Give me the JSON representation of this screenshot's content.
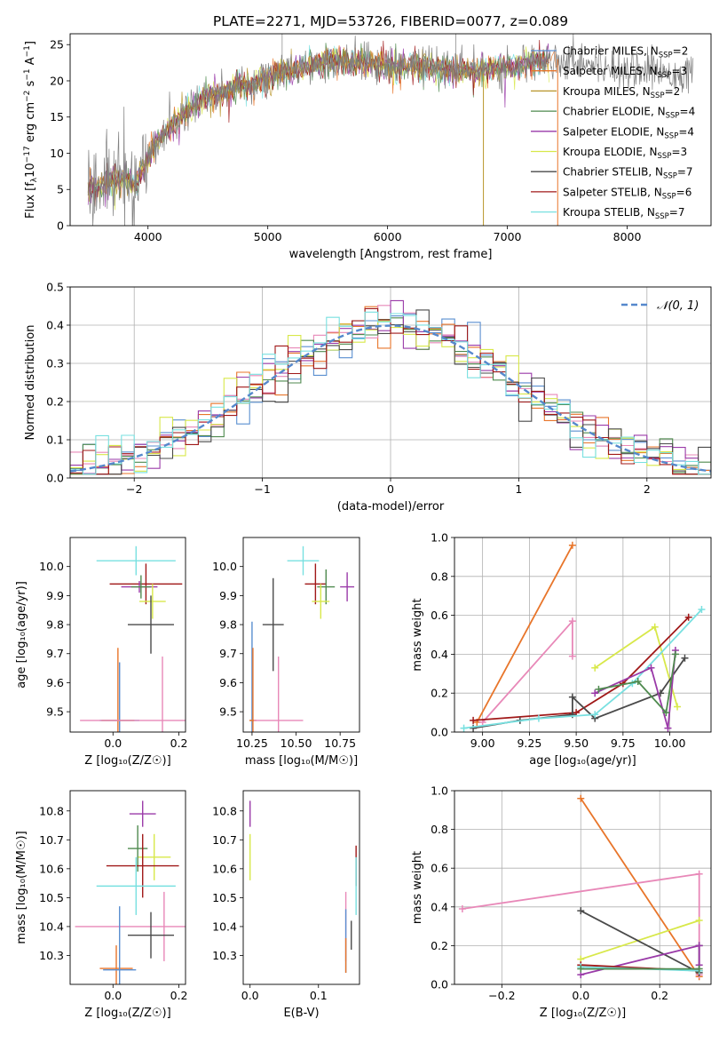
{
  "title": "PLATE=2271, MJD=53726, FIBERID=0077, z=0.089",
  "colors": {
    "Chabrier MILES": "#5a8fd0",
    "Salpeter MILES": "#e8752a",
    "Kroupa MILES": "#b8952a",
    "Chabrier ELODIE": "#4f8a4f",
    "Salpeter ELODIE": "#9a3aa8",
    "Kroupa ELODIE": "#d8e84a",
    "Chabrier STELIB": "#4a4a4a",
    "Salpeter STELIB": "#a01818",
    "Kroupa STELIB": "#78e0e0",
    "pink": "#e888b8",
    "grid": "#b0b0b0"
  },
  "chart_data": [
    {
      "id": "spectrum",
      "type": "line",
      "title": "PLATE=2271, MJD=53726, FIBERID=0077, z=0.089",
      "xlabel": "wavelength [Angstrom, rest frame]",
      "ylabel_parts": [
        "Flux [f",
        "λ",
        "10",
        "−17",
        " erg cm",
        "−2",
        " s",
        "−1",
        " A",
        "−1",
        "]"
      ],
      "xlim": [
        3350,
        8700
      ],
      "ylim": [
        0,
        26.5
      ],
      "xticks": [
        "4000",
        "5000",
        "6000",
        "7000",
        "8000"
      ],
      "xtick_values": [
        4000,
        5000,
        6000,
        7000,
        8000
      ],
      "yticks": [
        "0",
        "5",
        "10",
        "15",
        "20",
        "25"
      ],
      "ytick_values": [
        0,
        5,
        10,
        15,
        20,
        25
      ],
      "continuum": [
        [
          3500,
          5.0
        ],
        [
          3700,
          6.5
        ],
        [
          3900,
          6.0
        ],
        [
          4050,
          11
        ],
        [
          4200,
          14
        ],
        [
          4400,
          17
        ],
        [
          4600,
          18.5
        ],
        [
          4800,
          19.5
        ],
        [
          5000,
          20.5
        ],
        [
          5200,
          21.5
        ],
        [
          5400,
          22.5
        ],
        [
          5600,
          22.8
        ],
        [
          5800,
          22.5
        ],
        [
          6000,
          22
        ],
        [
          6200,
          22.3
        ],
        [
          6400,
          21.8
        ],
        [
          6600,
          21.5
        ],
        [
          6800,
          21.5
        ],
        [
          7000,
          22
        ],
        [
          7200,
          22.5
        ],
        [
          7400,
          23
        ],
        [
          7600,
          22.8
        ],
        [
          7800,
          22
        ],
        [
          8000,
          21.8
        ],
        [
          8200,
          21.5
        ],
        [
          8400,
          21
        ],
        [
          8550,
          21
        ]
      ],
      "legend": [
        {
          "name": "Chabrier MILES",
          "n": "2"
        },
        {
          "name": "Salpeter MILES",
          "n": "3"
        },
        {
          "name": "Kroupa MILES",
          "n": "2"
        },
        {
          "name": "Chabrier ELODIE",
          "n": "4"
        },
        {
          "name": "Salpeter ELODIE",
          "n": "4"
        },
        {
          "name": "Kroupa ELODIE",
          "n": "3"
        },
        {
          "name": "Chabrier STELIB",
          "n": "7"
        },
        {
          "name": "Salpeter STELIB",
          "n": "6"
        },
        {
          "name": "Kroupa STELIB",
          "n": "7"
        }
      ],
      "legend_loc": "right",
      "grid": false
    },
    {
      "id": "residuals",
      "type": "bar",
      "xlabel": "(data-model)/error",
      "ylabel": "Normed distribution",
      "xlim": [
        -2.5,
        2.5
      ],
      "ylim": [
        0,
        0.5
      ],
      "xticks": [
        "−2",
        "−1",
        "0",
        "1",
        "2"
      ],
      "xtick_values": [
        -2,
        -1,
        0,
        1,
        2
      ],
      "yticks": [
        "0.0",
        "0.1",
        "0.2",
        "0.3",
        "0.4",
        "0.5"
      ],
      "ytick_values": [
        0,
        0.1,
        0.2,
        0.3,
        0.4,
        0.5
      ],
      "bin_width": 0.1,
      "legend": "𝒩(0, 1)",
      "legend_loc": "upper right",
      "grid": true
    },
    {
      "id": "age_vs_Z",
      "type": "scatter",
      "xlabel": "Z [log₁₀(Z/Z☉)]",
      "ylabel": "age  [log₁₀(age/yr)]",
      "xlim": [
        -0.13,
        0.22
      ],
      "ylim": [
        9.43,
        10.1
      ],
      "xticks": [
        "0.0",
        "0.2"
      ],
      "xtick_values": [
        0,
        0.2
      ],
      "yticks": [
        "9.5",
        "9.6",
        "9.7",
        "9.8",
        "9.9",
        "10.0"
      ],
      "ytick_values": [
        9.5,
        9.6,
        9.7,
        9.8,
        9.9,
        10.0
      ],
      "grid": false,
      "points": [
        {
          "c": "Kroupa STELIB",
          "x": 0.07,
          "y": 10.02,
          "xe": 0.12,
          "ye": 0.05
        },
        {
          "c": "Salpeter STELIB",
          "x": 0.1,
          "y": 9.94,
          "xe": 0.11,
          "ye": 0.07
        },
        {
          "c": "Salpeter ELODIE",
          "x": 0.08,
          "y": 9.93,
          "xe": 0.055,
          "ye": 0.02
        },
        {
          "c": "Chabrier ELODIE",
          "x": 0.085,
          "y": 9.93,
          "xe": 0.03,
          "ye": 0.04
        },
        {
          "c": "Kroupa ELODIE",
          "x": 0.12,
          "y": 9.88,
          "xe": 0.04,
          "ye": 0.06
        },
        {
          "c": "Chabrier STELIB",
          "x": 0.115,
          "y": 9.8,
          "xe": 0.07,
          "ye": 0.1
        },
        {
          "c": "Chabrier MILES",
          "x": 0.02,
          "y": 9.47,
          "xe": 0.06,
          "ye": 0.2
        },
        {
          "c": "Salpeter MILES",
          "x": 0.015,
          "y": 9.47,
          "xe": 0.05,
          "ye": 0.25
        },
        {
          "c": "pink",
          "x": 0.15,
          "y": 9.47,
          "xe": 0.25,
          "ye": 0.22
        }
      ]
    },
    {
      "id": "age_vs_mass",
      "type": "scatter",
      "xlabel": "mass [log₁₀(M/M☉)]",
      "xlim": [
        10.2,
        10.86
      ],
      "ylim": [
        9.43,
        10.1
      ],
      "xticks": [
        "10.25",
        "10.50",
        "10.75"
      ],
      "xtick_values": [
        10.25,
        10.5,
        10.75
      ],
      "yticks": [
        "9.5",
        "9.6",
        "9.7",
        "9.8",
        "9.9",
        "10.0"
      ],
      "ytick_values": [
        9.5,
        9.6,
        9.7,
        9.8,
        9.9,
        10.0
      ],
      "grid": false,
      "points": [
        {
          "c": "Kroupa STELIB",
          "x": 10.54,
          "y": 10.02,
          "xe": 0.09,
          "ye": 0.05
        },
        {
          "c": "Salpeter STELIB",
          "x": 10.61,
          "y": 9.94,
          "xe": 0.06,
          "ye": 0.07
        },
        {
          "c": "Salpeter ELODIE",
          "x": 10.79,
          "y": 9.93,
          "xe": 0.04,
          "ye": 0.05
        },
        {
          "c": "Chabrier ELODIE",
          "x": 10.67,
          "y": 9.93,
          "xe": 0.05,
          "ye": 0.06
        },
        {
          "c": "Kroupa ELODIE",
          "x": 10.64,
          "y": 9.88,
          "xe": 0.05,
          "ye": 0.06
        },
        {
          "c": "Chabrier STELIB",
          "x": 10.37,
          "y": 9.8,
          "xe": 0.06,
          "ye": 0.16
        },
        {
          "c": "Chabrier MILES",
          "x": 10.25,
          "y": 9.47,
          "xe": 0.01,
          "ye": 0.34
        },
        {
          "c": "Salpeter MILES",
          "x": 10.255,
          "y": 9.47,
          "xe": 0.02,
          "ye": 0.25
        },
        {
          "c": "pink",
          "x": 10.4,
          "y": 9.47,
          "xe": 0.14,
          "ye": 0.22
        }
      ]
    },
    {
      "id": "weight_vs_age",
      "type": "line",
      "xlabel": "age  [log₁₀(age/yr)]",
      "ylabel": "mass weight",
      "xlim": [
        8.85,
        10.22
      ],
      "ylim": [
        0,
        1.0
      ],
      "xticks": [
        "9.00",
        "9.25",
        "9.50",
        "9.75",
        "10.00"
      ],
      "xtick_values": [
        9.0,
        9.25,
        9.5,
        9.75,
        10.0
      ],
      "yticks": [
        "0.0",
        "0.2",
        "0.4",
        "0.6",
        "0.8",
        "1.0"
      ],
      "ytick_values": [
        0,
        0.2,
        0.4,
        0.6,
        0.8,
        1.0
      ],
      "grid": true,
      "series": [
        {
          "c": "Salpeter MILES",
          "x": [
            8.97,
            9.48
          ],
          "y": [
            0.05,
            0.96
          ]
        },
        {
          "c": "pink",
          "x": [
            9.0,
            9.48,
            9.48
          ],
          "y": [
            0.05,
            0.57,
            0.39
          ]
        },
        {
          "c": "Kroupa ELODIE",
          "x": [
            9.6,
            9.92,
            10.04
          ],
          "y": [
            0.33,
            0.54,
            0.13
          ]
        },
        {
          "c": "Salpeter STELIB",
          "x": [
            8.95,
            9.5,
            9.75,
            10.1
          ],
          "y": [
            0.06,
            0.1,
            0.25,
            0.59
          ]
        },
        {
          "c": "Chabrier STELIB",
          "x": [
            8.95,
            9.2,
            9.48,
            9.48,
            9.6,
            9.95,
            10.08
          ],
          "y": [
            0.02,
            0.06,
            0.09,
            0.18,
            0.07,
            0.2,
            0.38
          ]
        },
        {
          "c": "Kroupa STELIB",
          "x": [
            8.9,
            9.3,
            9.6,
            9.8,
            10.17
          ],
          "y": [
            0.02,
            0.07,
            0.09,
            0.25,
            0.63
          ]
        },
        {
          "c": "Salpeter ELODIE",
          "x": [
            9.6,
            9.9,
            9.99,
            10.03
          ],
          "y": [
            0.2,
            0.33,
            0.02,
            0.42
          ]
        },
        {
          "c": "Chabrier ELODIE",
          "x": [
            9.62,
            9.83,
            9.98,
            10.03
          ],
          "y": [
            0.22,
            0.26,
            0.1,
            0.4
          ]
        }
      ]
    },
    {
      "id": "mass_vs_Z",
      "type": "scatter",
      "xlabel": "Z [log₁₀(Z/Z☉)]",
      "ylabel": "mass [log₁₀(M/M☉)]",
      "xlim": [
        -0.13,
        0.22
      ],
      "ylim": [
        10.2,
        10.87
      ],
      "xticks": [
        "0.0",
        "0.2"
      ],
      "xtick_values": [
        0,
        0.2
      ],
      "yticks": [
        "10.3",
        "10.4",
        "10.5",
        "10.6",
        "10.7",
        "10.8"
      ],
      "ytick_values": [
        10.3,
        10.4,
        10.5,
        10.6,
        10.7,
        10.8
      ],
      "grid": false,
      "points": [
        {
          "c": "Salpeter ELODIE",
          "x": 0.09,
          "y": 10.79,
          "xe": 0.04,
          "ye": 0.045
        },
        {
          "c": "Kroupa ELODIE",
          "x": 0.125,
          "y": 10.64,
          "xe": 0.05,
          "ye": 0.08
        },
        {
          "c": "Chabrier ELODIE",
          "x": 0.075,
          "y": 10.67,
          "xe": 0.03,
          "ye": 0.08
        },
        {
          "c": "Salpeter STELIB",
          "x": 0.09,
          "y": 10.61,
          "xe": 0.11,
          "ye": 0.11
        },
        {
          "c": "Kroupa STELIB",
          "x": 0.07,
          "y": 10.54,
          "xe": 0.12,
          "ye": 0.1
        },
        {
          "c": "pink",
          "x": 0.155,
          "y": 10.4,
          "xe": 0.27,
          "ye": 0.12
        },
        {
          "c": "Chabrier STELIB",
          "x": 0.115,
          "y": 10.37,
          "xe": 0.07,
          "ye": 0.08
        },
        {
          "c": "Salpeter MILES",
          "x": 0.01,
          "y": 10.255,
          "xe": 0.05,
          "ye": 0.08
        },
        {
          "c": "Chabrier MILES",
          "x": 0.02,
          "y": 10.25,
          "xe": 0.05,
          "ye": 0.22
        }
      ]
    },
    {
      "id": "mass_vs_ebv",
      "type": "scatter",
      "xlabel": "E(B-V)",
      "xlim": [
        -0.01,
        0.16
      ],
      "ylim": [
        10.2,
        10.87
      ],
      "xticks": [
        "0.0",
        "0.1"
      ],
      "xtick_values": [
        0,
        0.1
      ],
      "yticks": [
        "10.3",
        "10.4",
        "10.5",
        "10.6",
        "10.7",
        "10.8"
      ],
      "ytick_values": [
        10.3,
        10.4,
        10.5,
        10.6,
        10.7,
        10.8
      ],
      "grid": false,
      "points": [
        {
          "c": "Salpeter ELODIE",
          "x": 0.0,
          "y": 10.79,
          "xe": 0,
          "ye": 0.045
        },
        {
          "c": "Kroupa ELODIE",
          "x": 0.0,
          "y": 10.64,
          "xe": 0,
          "ye": 0.08
        },
        {
          "c": "Salpeter STELIB",
          "x": 0.155,
          "y": 10.61,
          "xe": 0,
          "ye": 0.07
        },
        {
          "c": "Kroupa STELIB",
          "x": 0.155,
          "y": 10.54,
          "xe": 0,
          "ye": 0.1
        },
        {
          "c": "pink",
          "x": 0.14,
          "y": 10.4,
          "xe": 0,
          "ye": 0.12
        },
        {
          "c": "Chabrier STELIB",
          "x": 0.148,
          "y": 10.37,
          "xe": 0,
          "ye": 0.05
        },
        {
          "c": "Chabrier MILES",
          "x": 0.14,
          "y": 10.35,
          "xe": 0,
          "ye": 0.11
        },
        {
          "c": "Salpeter MILES",
          "x": 0.14,
          "y": 10.3,
          "xe": 0,
          "ye": 0.06
        }
      ]
    },
    {
      "id": "weight_vs_Z",
      "type": "line",
      "xlabel": "Z [log₁₀(Z/Z☉)]",
      "ylabel": "mass weight",
      "xlim": [
        -0.32,
        0.33
      ],
      "ylim": [
        0,
        1.0
      ],
      "xticks": [
        "−0.2",
        "0.0",
        "0.2"
      ],
      "xtick_values": [
        -0.2,
        0,
        0.2
      ],
      "yticks": [
        "0.0",
        "0.2",
        "0.4",
        "0.6",
        "0.8",
        "1.0"
      ],
      "ytick_values": [
        0,
        0.2,
        0.4,
        0.6,
        0.8,
        1.0
      ],
      "grid": true,
      "series": [
        {
          "c": "Salpeter MILES",
          "x": [
            0.0,
            0.3
          ],
          "y": [
            0.96,
            0.04
          ]
        },
        {
          "c": "pink",
          "x": [
            -0.3,
            0.3,
            0.3
          ],
          "y": [
            0.39,
            0.57,
            0.05
          ]
        },
        {
          "c": "Kroupa ELODIE",
          "x": [
            0.0,
            0.3
          ],
          "y": [
            0.13,
            0.33
          ]
        },
        {
          "c": "Chabrier STELIB",
          "x": [
            0.0,
            0.3,
            0.3
          ],
          "y": [
            0.38,
            0.06,
            0.2
          ]
        },
        {
          "c": "Salpeter ELODIE",
          "x": [
            0.0,
            0.3,
            0.3
          ],
          "y": [
            0.05,
            0.2,
            0.1
          ]
        },
        {
          "c": "Salpeter STELIB",
          "x": [
            0.0,
            0.3
          ],
          "y": [
            0.1,
            0.07
          ]
        },
        {
          "c": "Kroupa STELIB",
          "x": [
            0.0,
            0.3
          ],
          "y": [
            0.09,
            0.07
          ]
        },
        {
          "c": "Chabrier ELODIE",
          "x": [
            0.0,
            0.3
          ],
          "y": [
            0.08,
            0.08
          ]
        }
      ]
    }
  ]
}
